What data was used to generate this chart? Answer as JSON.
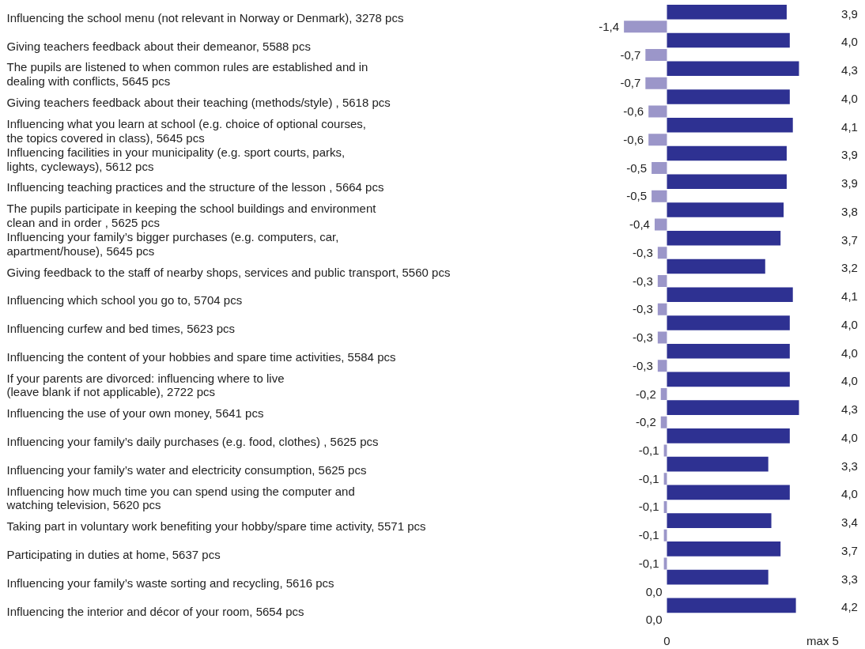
{
  "chart_data": {
    "type": "bar",
    "orientation": "horizontal",
    "categories": [
      "Influencing the school menu (not relevant in Norway or Denmark), 3278 pcs",
      "Giving teachers feedback about their demeanor, 5588 pcs",
      "The pupils are listened to when common rules are established and in\ndealing with conflicts, 5645 pcs",
      "Giving teachers feedback about their teaching (methods/style) , 5618 pcs",
      "Influencing what you learn at school (e.g. choice of optional courses,\nthe topics covered in class), 5645 pcs",
      "Influencing facilities in your municipality (e.g. sport courts, parks,\nlights, cycleways), 5612 pcs",
      "Influencing teaching practices and the structure of the lesson , 5664 pcs",
      "The pupils participate in keeping the school buildings and environment\nclean and in order , 5625 pcs",
      "Influencing your family’s bigger purchases (e.g. computers, car,\napartment/house), 5645 pcs",
      "Giving feedback to the staff of nearby shops, services and public transport, 5560 pcs",
      "Influencing which school you go to, 5704 pcs",
      "Influencing curfew and bed times, 5623 pcs",
      "Influencing the content of your hobbies and spare time activities, 5584 pcs",
      "If your parents are divorced: influencing where to live\n(leave blank if not applicable), 2722 pcs",
      "Influencing the use of your own money, 5641 pcs",
      "Influencing your family’s daily purchases (e.g. food, clothes) , 5625 pcs",
      "Influencing your family’s water and electricity consumption, 5625 pcs",
      "Influencing how much time you can spend using the computer and\nwatching television, 5620 pcs",
      "Taking part in voluntary work benefiting your hobby/spare time activity, 5571 pcs",
      "Participating in duties at home, 5637 pcs",
      "Influencing your family’s waste sorting and recycling, 5616 pcs",
      "Influencing the interior and décor of your room, 5654 pcs"
    ],
    "series": [
      {
        "color": "#2e3192",
        "values": [
          3.9,
          4.0,
          4.3,
          4.0,
          4.1,
          3.9,
          3.9,
          3.8,
          3.7,
          3.2,
          4.1,
          4.0,
          4.0,
          4.0,
          4.3,
          4.0,
          3.3,
          4.0,
          3.4,
          3.7,
          3.3,
          4.2
        ],
        "value_labels": [
          "3,9",
          "4,0",
          "4,3",
          "4,0",
          "4,1",
          "3,9",
          "3,9",
          "3,8",
          "3,7",
          "3,2",
          "4,1",
          "4,0",
          "4,0",
          "4,0",
          "4,3",
          "4,0",
          "3,3",
          "4,0",
          "3,4",
          "3,7",
          "3,3",
          "4,2"
        ]
      },
      {
        "color": "#9b96c9",
        "values": [
          -1.4,
          -0.7,
          -0.7,
          -0.6,
          -0.6,
          -0.5,
          -0.5,
          -0.4,
          -0.3,
          -0.3,
          -0.3,
          -0.3,
          -0.3,
          -0.2,
          -0.2,
          -0.1,
          -0.1,
          -0.1,
          -0.1,
          -0.1,
          0.0,
          0.0
        ],
        "value_labels": [
          "-1,4",
          "-0,7",
          "-0,7",
          "-0,6",
          "-0,6",
          "-0,5",
          "-0,5",
          "-0,4",
          "-0,3",
          "-0,3",
          "-0,3",
          "-0,3",
          "-0,3",
          "-0,2",
          "-0,2",
          "-0,1",
          "-0,1",
          "-0,1",
          "-0,1",
          "-0,1",
          "0,0",
          "0,0"
        ]
      }
    ],
    "annotations": [
      "0",
      "max 5"
    ]
  }
}
